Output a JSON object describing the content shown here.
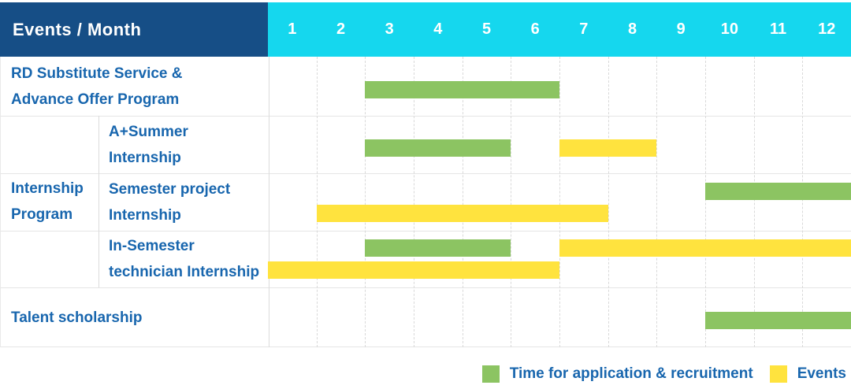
{
  "header": {
    "title": "Events / Month",
    "months": [
      "1",
      "2",
      "3",
      "4",
      "5",
      "6",
      "7",
      "8",
      "9",
      "10",
      "11",
      "12"
    ]
  },
  "colors": {
    "header_bg": "#164E86",
    "month_bg": "#15D7EE",
    "label_text": "#1866AE",
    "application_green": "#8CC462",
    "events_yellow": "#FFE33E"
  },
  "legend": {
    "application": {
      "label": "Time for application & recruitment",
      "color": "#8CC462"
    },
    "events": {
      "label": "Events",
      "color": "#FFE33E"
    }
  },
  "chart_data": {
    "type": "gantt",
    "title": "Events / Month",
    "x_unit": "month",
    "x_ticks": [
      "1",
      "2",
      "3",
      "4",
      "5",
      "6",
      "7",
      "8",
      "9",
      "10",
      "11",
      "12"
    ],
    "x_range": [
      1,
      12
    ],
    "grid": true,
    "legend_position": "bottom-right",
    "series": [
      {
        "name": "application",
        "label": "Time for application & recruitment",
        "color": "#8CC462"
      },
      {
        "name": "events",
        "label": "Events",
        "color": "#FFE33E"
      }
    ],
    "rows": [
      {
        "label": "RD Substitute Service &\nAdvance Offer Program",
        "group": null,
        "lanes": 1,
        "bars": [
          {
            "series": "application",
            "start_month": 3,
            "end_month": 6,
            "lane": 0
          }
        ]
      },
      {
        "label": "A+Summer\nInternship",
        "group": "Internship Program",
        "lanes": 1,
        "bars": [
          {
            "series": "application",
            "start_month": 3,
            "end_month": 5,
            "lane": 0
          },
          {
            "series": "events",
            "start_month": 7,
            "end_month": 8,
            "lane": 0
          }
        ]
      },
      {
        "label": "Semester project\nInternship",
        "group": "Internship Program",
        "lanes": 2,
        "bars": [
          {
            "series": "application",
            "start_month": 10,
            "end_month": 12,
            "lane": 0
          },
          {
            "series": "events",
            "start_month": 2,
            "end_month": 7,
            "lane": 1
          }
        ]
      },
      {
        "label": "In-Semester\ntechnician Internship",
        "group": "Internship Program",
        "lanes": 2,
        "bars": [
          {
            "series": "application",
            "start_month": 3,
            "end_month": 5,
            "lane": 0
          },
          {
            "series": "events",
            "start_month": 7,
            "end_month": 12,
            "lane": 0
          },
          {
            "series": "events",
            "start_month": 1,
            "end_month": 6,
            "lane": 1
          }
        ]
      },
      {
        "label": "Talent scholarship",
        "group": null,
        "lanes": 1,
        "bars": [
          {
            "series": "application",
            "start_month": 10,
            "end_month": 12,
            "lane": 0
          }
        ]
      }
    ],
    "group_label_display": "Internship\nProgram"
  }
}
